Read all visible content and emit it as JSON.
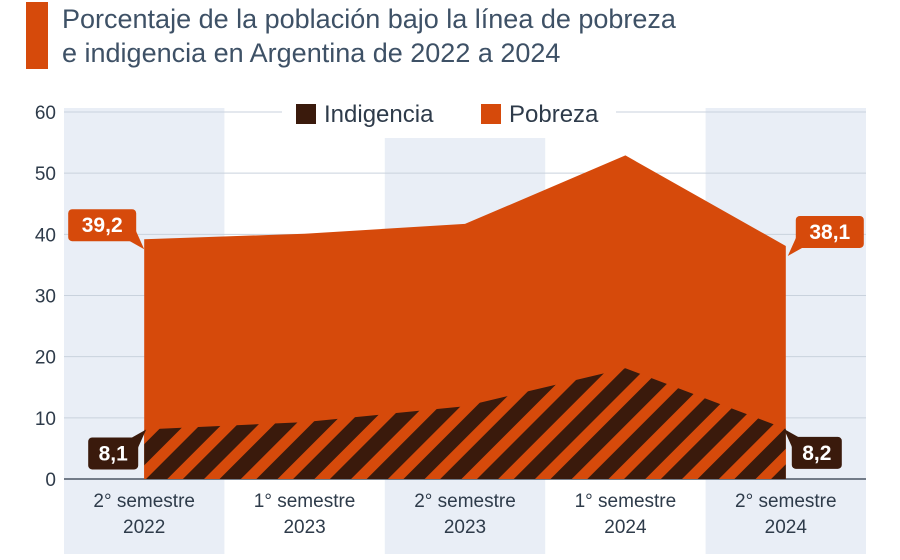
{
  "title": {
    "line1": "Porcentaje de la población bajo la línea de pobreza",
    "line2": "e indigencia en Argentina de 2022 a 2024"
  },
  "colors": {
    "pobreza": "#d64a0b",
    "indigencia": "#3a1a0c",
    "band": "#e9eef6",
    "axis_text": "#2e3b4a",
    "grid": "#c9d2dd",
    "title_text": "#3e5166"
  },
  "chart_data": {
    "type": "area",
    "title": "Porcentaje de la población bajo la línea de pobreza e indigencia en Argentina de 2022 a 2024",
    "categories": [
      [
        "2° semestre",
        "2022"
      ],
      [
        "1° semestre",
        "2023"
      ],
      [
        "2° semestre",
        "2023"
      ],
      [
        "1° semestre",
        "2024"
      ],
      [
        "2° semestre",
        "2024"
      ]
    ],
    "series": [
      {
        "name": "Indigencia",
        "values": [
          8.1,
          9.3,
          11.9,
          18.1,
          8.2
        ]
      },
      {
        "name": "Pobreza",
        "values": [
          39.2,
          40.1,
          41.7,
          52.9,
          38.1
        ]
      }
    ],
    "ylim": [
      0,
      60
    ],
    "yticks": [
      0,
      10,
      20,
      30,
      40,
      50,
      60
    ],
    "grid": true,
    "legend": "top-center",
    "labels": [
      {
        "series": "Pobreza",
        "index": 0,
        "text": "39,2"
      },
      {
        "series": "Pobreza",
        "index": 4,
        "text": "38,1"
      },
      {
        "series": "Indigencia",
        "index": 0,
        "text": "8,1"
      },
      {
        "series": "Indigencia",
        "index": 4,
        "text": "8,2"
      }
    ]
  }
}
